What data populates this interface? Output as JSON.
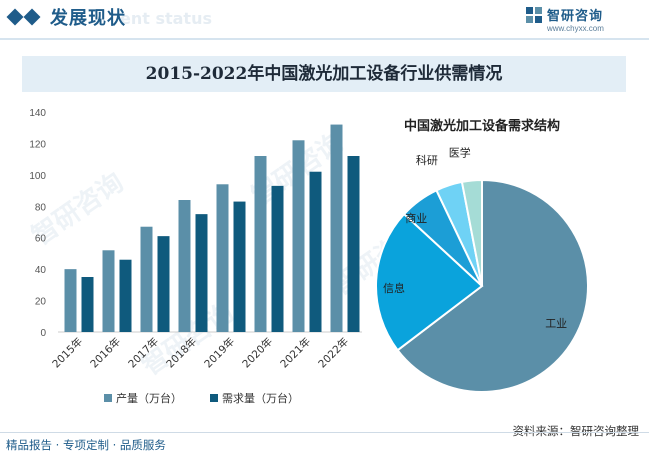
{
  "header": {
    "section_title": "发展现状",
    "section_ghost": "ent status",
    "logo_name": "智研咨询",
    "logo_url": "www.chyxx.com"
  },
  "watermark_text": "智研咨询",
  "colors": {
    "production": "#5b8fa8",
    "demand": "#0f5a7d",
    "accent": "#1f5c8a",
    "pie": [
      "#5b8fa8",
      "#0aa3dc",
      "#1c9ed6",
      "#6fd2f5",
      "#a5dcd6"
    ]
  },
  "chart_data": [
    {
      "type": "bar",
      "title": "2015-2022年中国激光加工设备行业供需情况",
      "categories": [
        "2015年",
        "2016年",
        "2017年",
        "2018年",
        "2019年",
        "2020年",
        "2021年",
        "2022年"
      ],
      "series": [
        {
          "name": "产量（万台）",
          "values": [
            40,
            52,
            67,
            84,
            94,
            112,
            122,
            132
          ]
        },
        {
          "name": "需求量（万台）",
          "values": [
            35,
            46,
            61,
            75,
            83,
            93,
            102,
            112
          ]
        }
      ],
      "ylim": [
        0,
        140
      ],
      "yticks": [
        0,
        20,
        40,
        60,
        80,
        100,
        120,
        140
      ],
      "grid": false,
      "legend": "bottom"
    },
    {
      "type": "pie",
      "title": "中国激光加工设备需求结构",
      "labels": [
        "工业",
        "信息",
        "商业",
        "科研",
        "医学"
      ],
      "values": [
        64,
        22,
        6,
        4,
        3
      ]
    }
  ],
  "footer": {
    "left": "精品报告 · 专项定制 · 品质服务",
    "right": "资料来源：智研咨询整理"
  }
}
